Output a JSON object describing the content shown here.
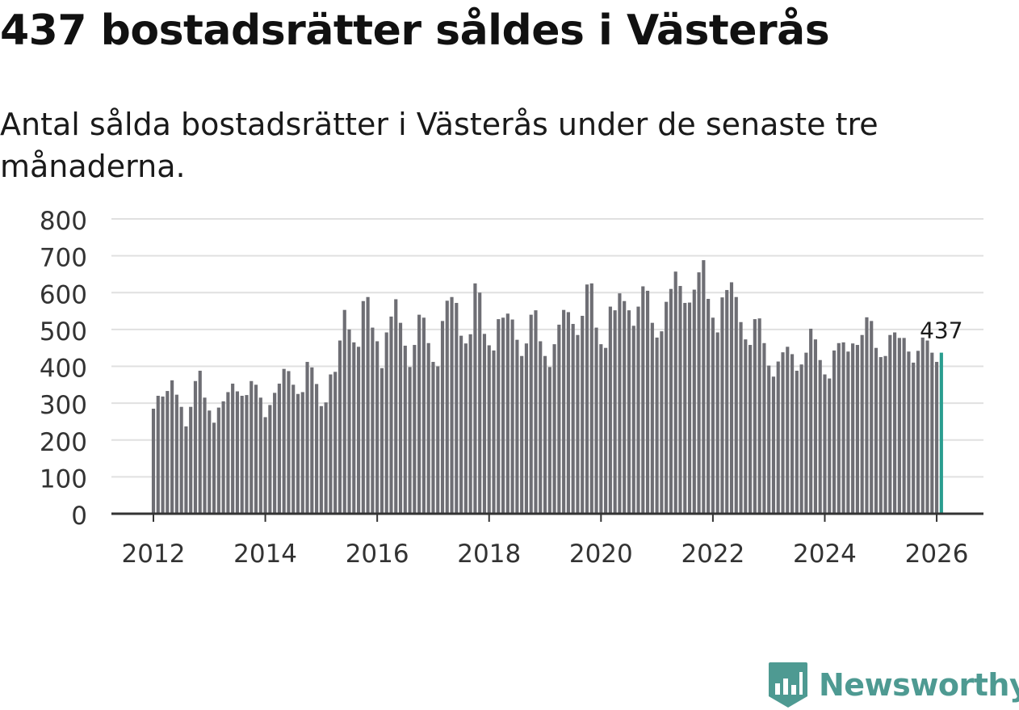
{
  "header": {
    "title": "437 bostadsrätter såldes i Västerås",
    "subtitle": "Antal sålda bostadsrätter i Västerås under de senaste tre månaderna."
  },
  "brand": {
    "name": "Newsworthy",
    "color": "#4e9a92",
    "icon": "newsworthy-logo-icon"
  },
  "chart_data": {
    "type": "bar",
    "title": "437 bostadsrätter såldes i Västerås",
    "subtitle": "Antal sålda bostadsrätter i Västerås under de senaste tre månaderna.",
    "xlabel": "",
    "ylabel": "",
    "ylim": [
      0,
      800
    ],
    "yticks": [
      0,
      100,
      200,
      300,
      400,
      500,
      600,
      700,
      800
    ],
    "ytick_labels": [
      "0",
      "100",
      "200",
      "300",
      "400",
      "500",
      "600",
      "700",
      "800"
    ],
    "xticks": [
      "2012",
      "2014",
      "2016",
      "2018",
      "2020",
      "2022",
      "2024",
      "2026"
    ],
    "grid": true,
    "start": "2012-01",
    "frequency": "monthly",
    "bar_color": "#6e6e74",
    "highlight_color": "#2a9d8f",
    "highlight_label": "437",
    "values": [
      285,
      320,
      318,
      333,
      362,
      323,
      290,
      237,
      290,
      360,
      388,
      315,
      280,
      247,
      288,
      305,
      330,
      353,
      332,
      320,
      322,
      360,
      350,
      315,
      262,
      295,
      328,
      353,
      393,
      387,
      350,
      325,
      330,
      412,
      397,
      352,
      292,
      302,
      378,
      385,
      470,
      553,
      500,
      465,
      453,
      577,
      588,
      505,
      468,
      395,
      492,
      535,
      582,
      518,
      456,
      398,
      458,
      540,
      532,
      463,
      412,
      400,
      523,
      578,
      588,
      572,
      483,
      462,
      487,
      625,
      600,
      488,
      457,
      443,
      528,
      532,
      543,
      527,
      472,
      428,
      462,
      540,
      552,
      468,
      428,
      398,
      460,
      513,
      553,
      547,
      515,
      485,
      537,
      622,
      625,
      505,
      460,
      450,
      562,
      552,
      598,
      577,
      552,
      510,
      562,
      617,
      605,
      518,
      478,
      495,
      575,
      610,
      657,
      618,
      572,
      573,
      608,
      655,
      688,
      583,
      532,
      492,
      587,
      607,
      628,
      588,
      520,
      473,
      458,
      528,
      530,
      463,
      402,
      372,
      413,
      438,
      453,
      433,
      388,
      405,
      437,
      502,
      473,
      417,
      378,
      367,
      443,
      463,
      465,
      440,
      462,
      458,
      485,
      533,
      523,
      450,
      425,
      428,
      485,
      492,
      477,
      477,
      440,
      410,
      442,
      478,
      470,
      437,
      412,
      437
    ]
  }
}
